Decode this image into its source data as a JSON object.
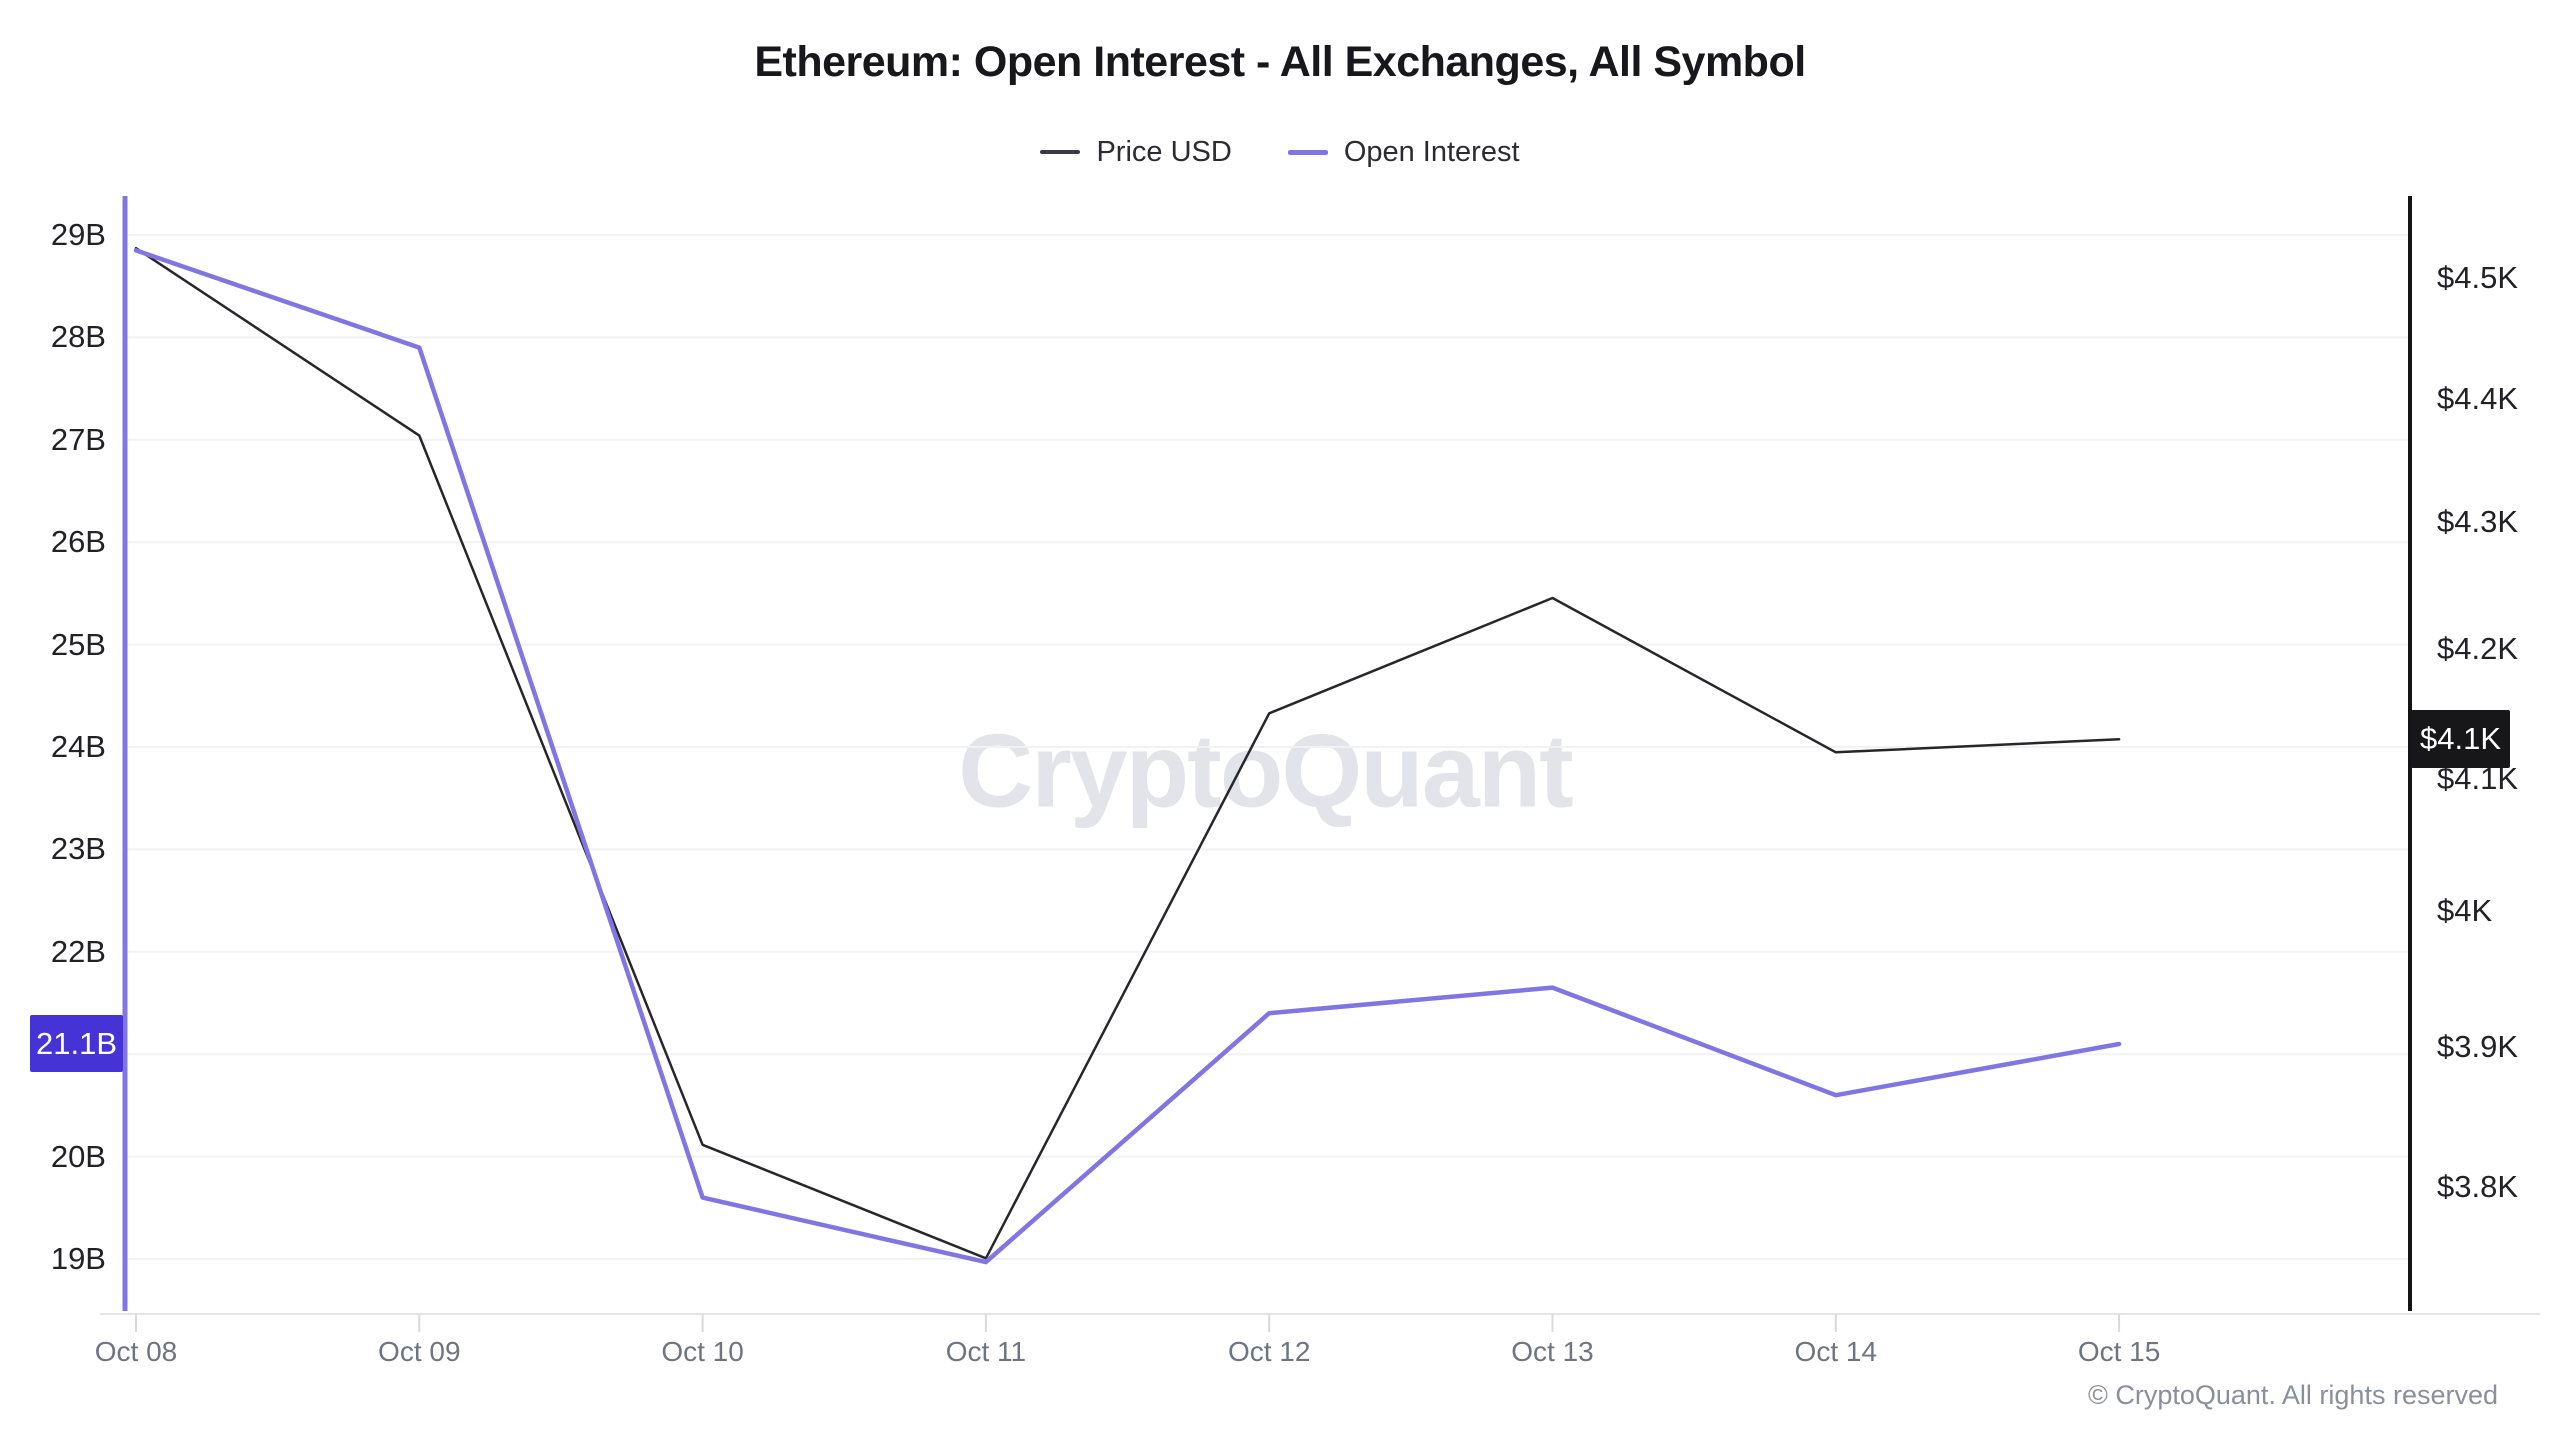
{
  "chart_data": {
    "type": "line",
    "title": "Ethereum: Open Interest - All Exchanges, All Symbol",
    "watermark": "CryptoQuant",
    "x_categories": [
      "Oct 08",
      "Oct 09",
      "Oct 10",
      "Oct 11",
      "Oct 12",
      "Oct 13",
      "Oct 14",
      "Oct 15"
    ],
    "series": [
      {
        "name": "Price USD",
        "axis": "right",
        "color": "#26262b",
        "stroke_width": 2.5,
        "values_usd": [
          4525,
          4370,
          3830,
          3750,
          4150,
          4240,
          4120,
          4130
        ]
      },
      {
        "name": "Open Interest",
        "axis": "left",
        "color": "#8175e1",
        "stroke_width": 4.5,
        "values_billion_usd": [
          28.85,
          27.9,
          19.6,
          18.97,
          21.4,
          21.65,
          20.6,
          21.1
        ]
      }
    ],
    "left_axis": {
      "unit": "USD billions",
      "scale": "linear",
      "range": [
        18.6,
        29.4
      ],
      "grid_values": [
        29,
        28,
        27,
        26,
        25,
        24,
        23,
        22,
        21,
        20,
        19
      ],
      "tick_labels": [
        {
          "value": 29,
          "label": "29B"
        },
        {
          "value": 28,
          "label": "28B"
        },
        {
          "value": 27,
          "label": "27B"
        },
        {
          "value": 26,
          "label": "26B"
        },
        {
          "value": 25,
          "label": "25B"
        },
        {
          "value": 24,
          "label": "24B"
        },
        {
          "value": 23,
          "label": "23B"
        },
        {
          "value": 22,
          "label": "22B"
        },
        {
          "value": 20,
          "label": "20B"
        },
        {
          "value": 19,
          "label": "19B"
        }
      ],
      "current_value": 21.1,
      "current_label": "21.1B",
      "accent_color": "#4633d6"
    },
    "right_axis": {
      "unit": "USD",
      "scale": "log",
      "tick_labels": [
        {
          "value": 4500,
          "label": "$4.5K"
        },
        {
          "value": 4400,
          "label": "$4.4K"
        },
        {
          "value": 4300,
          "label": "$4.3K"
        },
        {
          "value": 4200,
          "label": "$4.2K"
        },
        {
          "value": 4100,
          "label": "$4.1K"
        },
        {
          "value": 4000,
          "label": "$4K"
        },
        {
          "value": 3900,
          "label": "$3.9K"
        },
        {
          "value": 3800,
          "label": "$3.8K"
        }
      ],
      "current_value": 4130,
      "current_label": "$4.1K",
      "accent_color": "#17171a"
    },
    "legend_position": "top-center",
    "grid": "horizontal-only"
  },
  "footer": {
    "copyright": "© CryptoQuant. All rights reserved"
  }
}
